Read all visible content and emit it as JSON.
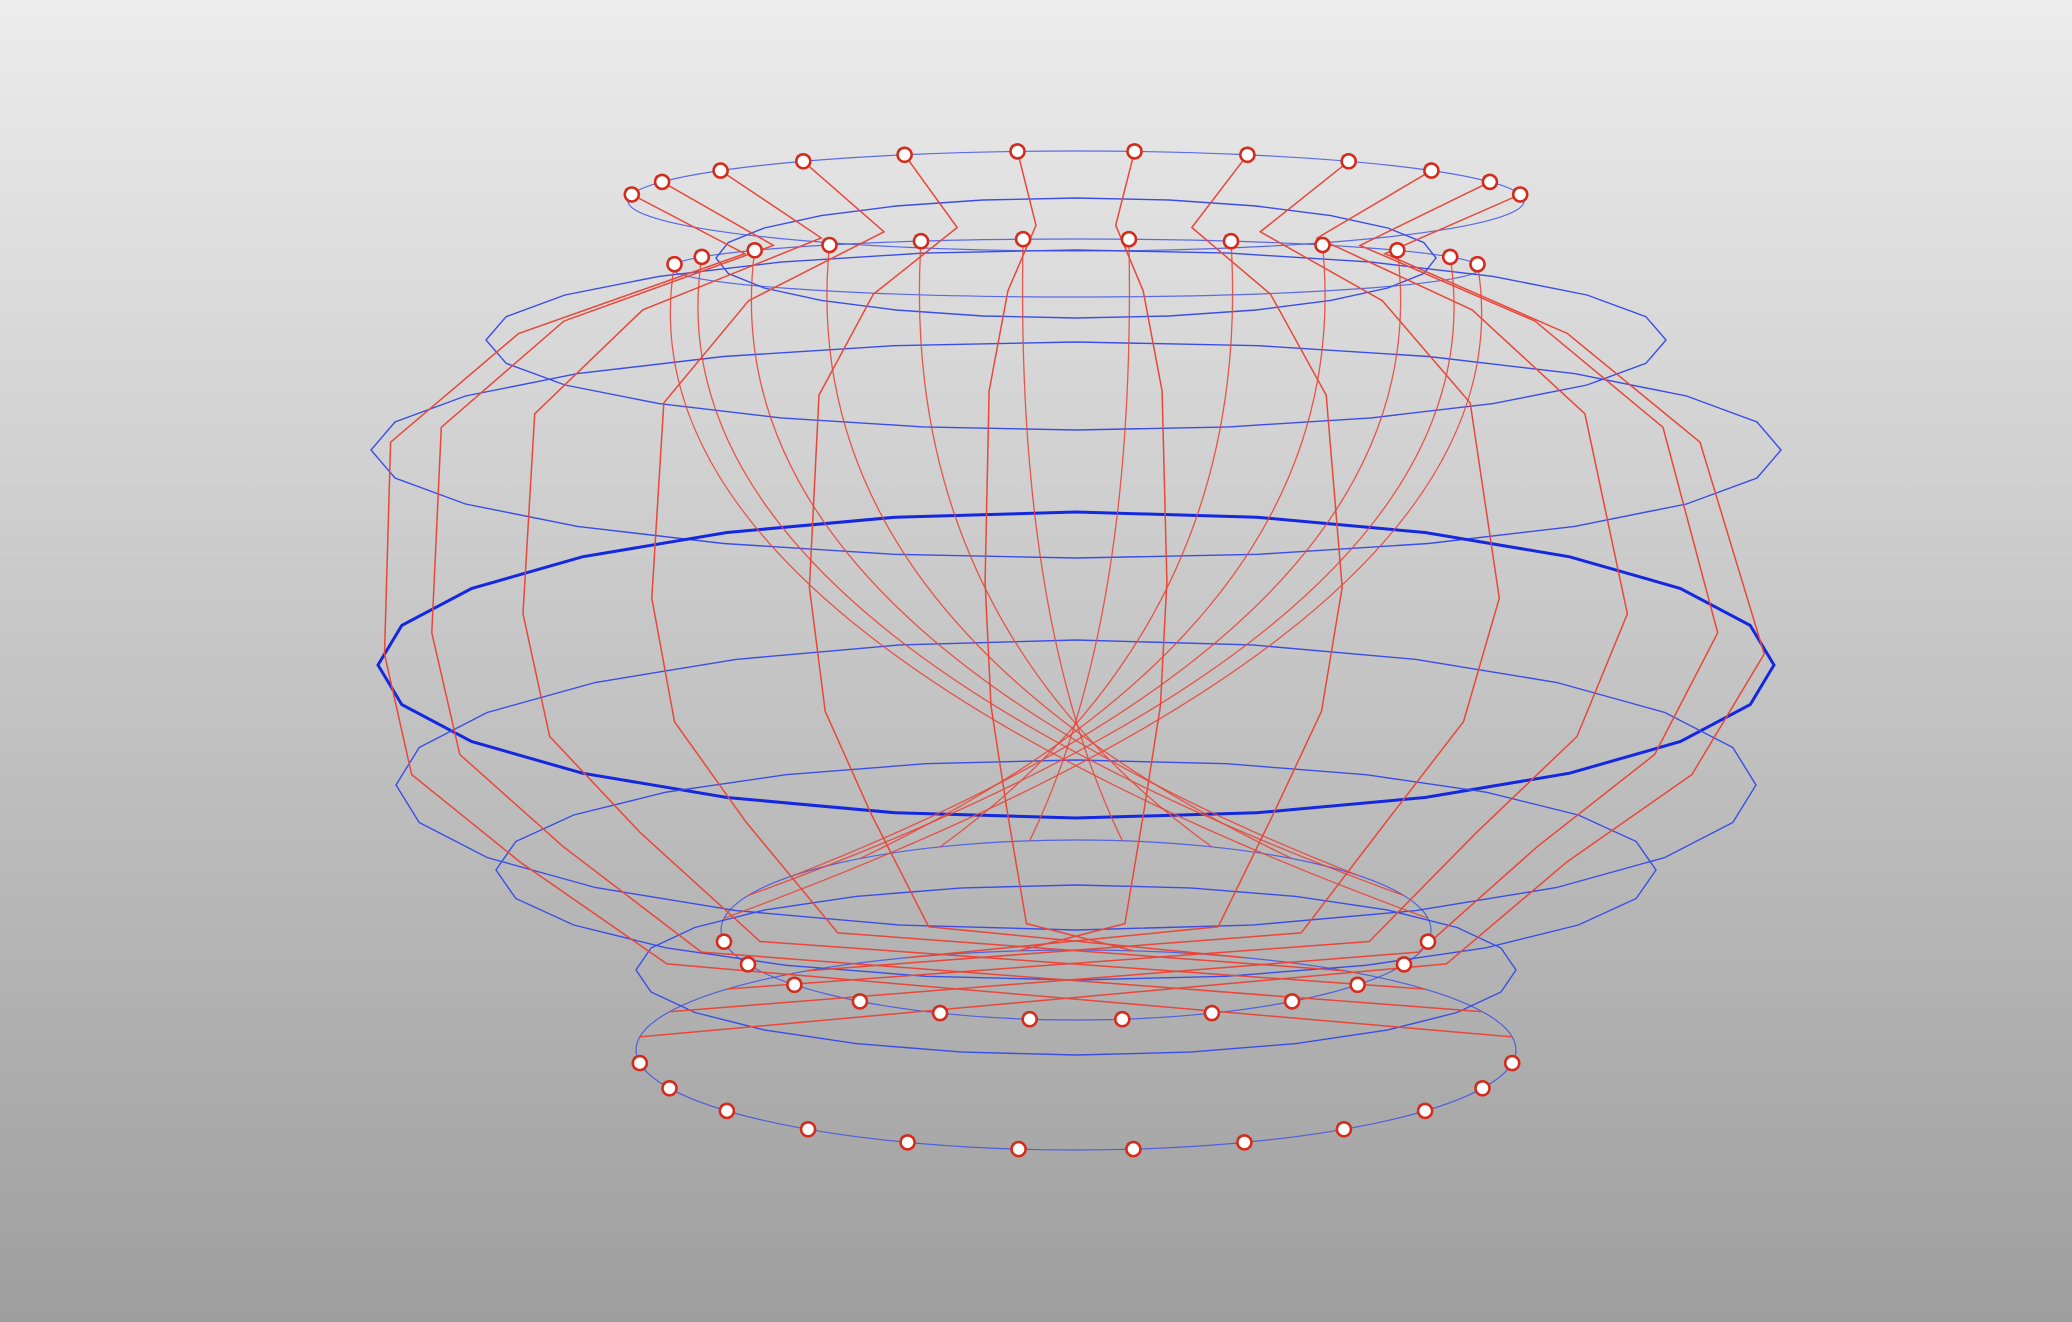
{
  "viewport": {
    "background_top": "#ececec",
    "background_bottom": "#9e9e9e",
    "hint": ""
  },
  "mesh": {
    "type": "wireframe-ellipsoid",
    "meridian_count": 12,
    "latitude_rings": 8,
    "equator_ring": "highlighted",
    "colors": {
      "latitude": "#3a4ee6",
      "equator": "#1428e0",
      "meridian": "#e8473a",
      "node_fill": "#ffffff",
      "node_stroke": "#d62a1a",
      "node_tick": "#2f7a1f"
    }
  },
  "control_points": {
    "top_outer_ring": 12,
    "top_inner_ring": 12,
    "bottom_inner_ring": 12,
    "bottom_outer_ring": 12,
    "total": 48
  }
}
